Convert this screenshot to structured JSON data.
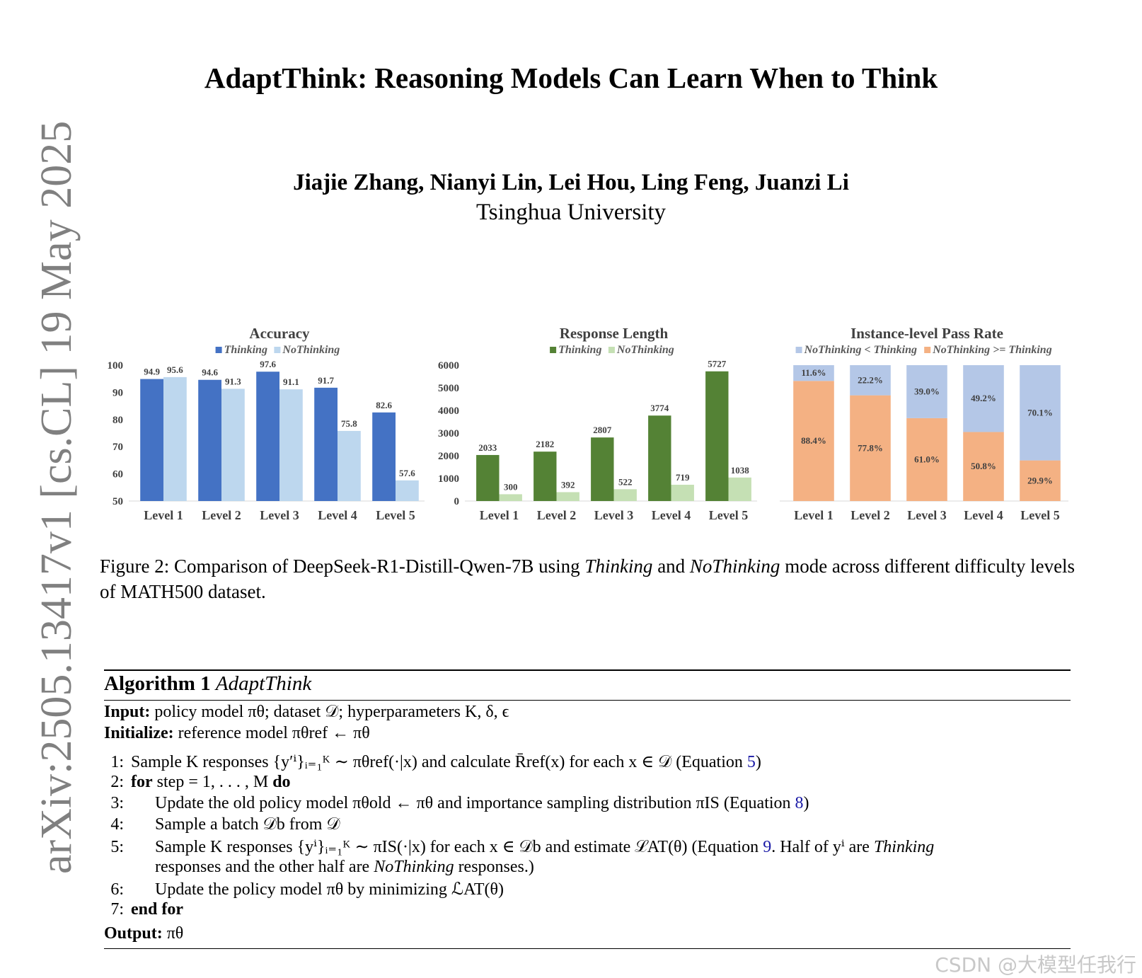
{
  "arxiv_stamp": "arXiv:2505.13417v1  [cs.CL]  19 May 2025",
  "title": "AdaptThink: Reasoning Models Can Learn When to Think",
  "authors": "Jiajie Zhang, Nianyi Lin, Lei Hou, Ling Feng, Juanzi Li",
  "affiliation": "Tsinghua University",
  "colors": {
    "thinking_blue": "#4472c4",
    "nothinking_blue": "#bdd7ee",
    "thinking_green": "#548235",
    "nothinking_green": "#c5e0b4",
    "pass_blue": "#b4c7e7",
    "pass_orange": "#f4b183"
  },
  "chart_data": [
    {
      "type": "bar",
      "title": "Accuracy",
      "categories": [
        "Level 1",
        "Level 2",
        "Level 3",
        "Level 4",
        "Level 5"
      ],
      "series": [
        {
          "name": "Thinking",
          "values": [
            94.9,
            94.6,
            97.6,
            91.7,
            82.6
          ]
        },
        {
          "name": "NoThinking",
          "values": [
            95.6,
            91.3,
            91.1,
            75.8,
            57.6
          ]
        }
      ],
      "ylim": [
        50,
        100
      ],
      "yticks": [
        50,
        60,
        70,
        80,
        90,
        100
      ],
      "legend": "top"
    },
    {
      "type": "bar",
      "title": "Response Length",
      "categories": [
        "Level 1",
        "Level 2",
        "Level 3",
        "Level 4",
        "Level 5"
      ],
      "series": [
        {
          "name": "Thinking",
          "values": [
            2033,
            2182,
            2807,
            3774,
            5727
          ]
        },
        {
          "name": "NoThinking",
          "values": [
            300,
            392,
            522,
            719,
            1038
          ]
        }
      ],
      "ylim": [
        0,
        6000
      ],
      "yticks": [
        0,
        1000,
        2000,
        3000,
        4000,
        5000,
        6000
      ],
      "legend": "top"
    },
    {
      "type": "bar",
      "stacked": true,
      "title": "Instance-level Pass Rate",
      "categories": [
        "Level 1",
        "Level 2",
        "Level 3",
        "Level 4",
        "Level 5"
      ],
      "series": [
        {
          "name": "NoThinking < Thinking",
          "values": [
            11.6,
            22.2,
            39.0,
            49.2,
            70.1
          ],
          "labels": [
            "11.6%",
            "22.2%",
            "39.0%",
            "49.2%",
            "70.1%"
          ]
        },
        {
          "name": "NoThinking >= Thinking",
          "values": [
            88.4,
            77.8,
            61.0,
            50.8,
            29.9
          ],
          "labels": [
            "88.4%",
            "77.8%",
            "61.0%",
            "50.8%",
            "29.9%"
          ]
        }
      ],
      "ylim": [
        0,
        100
      ],
      "legend": "top"
    }
  ],
  "caption": {
    "prefix": "Figure 2: Comparison of DeepSeek-R1-Distill-Qwen-7B using ",
    "mode1": "Thinking",
    "mid": " and ",
    "mode2": "NoThinking",
    "suffix": " mode across different difficulty levels of MATH500 dataset."
  },
  "algorithm": {
    "label": "Algorithm 1",
    "name": "AdaptThink",
    "input_label": "Input:",
    "input_text": " policy model πθ; dataset 𝒟; hyperparameters K, δ, ϵ",
    "init_label": "Initialize:",
    "init_text": " reference model πθref ← πθ",
    "lines": [
      {
        "num": "1:",
        "text": "Sample K responses {y′ⁱ}ᵢ₌₁ᴷ ∼ πθref(·|x) and calculate R̄ref(x) for each x ∈ 𝒟 (Equation ",
        "ref": "5",
        "tail": ")"
      },
      {
        "num": "2:",
        "kw1": "for",
        "text": " step = 1, . . . , M ",
        "kw2": "do"
      },
      {
        "num": "3:",
        "text": "Update the old policy model πθold ← πθ and importance sampling distribution πIS (Equation ",
        "ref": "8",
        "tail": ")"
      },
      {
        "num": "4:",
        "text": "Sample a batch 𝒟b from 𝒟"
      },
      {
        "num": "5:",
        "text": "Sample K responses {yⁱ}ᵢ₌₁ᴷ ∼ πIS(·|x) for each x ∈ 𝒟b and estimate ℒAT(θ) (Equation ",
        "ref": "9",
        "tail": ". Half of yⁱ are ",
        "italic": "Thinking"
      },
      {
        "num": "",
        "text": "responses and the other half are ",
        "italic": "NoThinking",
        "tail2": " responses.)"
      },
      {
        "num": "6:",
        "text": "Update the policy model πθ by minimizing ℒAT(θ)"
      },
      {
        "num": "7:",
        "kw1": "end for"
      }
    ],
    "output_label": "Output:",
    "output_text": " πθ"
  },
  "watermark": "CSDN @大模型任我行"
}
